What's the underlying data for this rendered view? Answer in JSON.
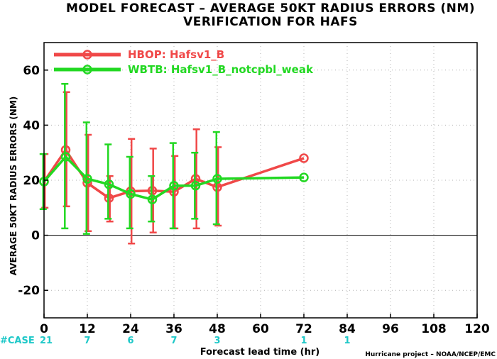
{
  "chart_data": {
    "type": "line",
    "title": "MODEL FORECAST – AVERAGE 50KT RADIUS ERRORS (NM)",
    "subtitle": "VERIFICATION FOR HAFS",
    "xlabel": "Forecast lead time (hr)",
    "ylabel": "AVERAGE 50KT RADIUS ERRORS (NM)",
    "xlim": [
      0,
      120
    ],
    "ylim": [
      -30,
      70
    ],
    "xticks": [
      0,
      12,
      24,
      36,
      48,
      60,
      72,
      84,
      96,
      108,
      120
    ],
    "yticks": [
      -20,
      0,
      20,
      40,
      60
    ],
    "grid": true,
    "legend_position": "top-left",
    "case_label": "#CASE",
    "cases": [
      {
        "x": 0,
        "label": "21"
      },
      {
        "x": 12,
        "label": "7"
      },
      {
        "x": 24,
        "label": "6"
      },
      {
        "x": 36,
        "label": "7"
      },
      {
        "x": 48,
        "label": "3"
      },
      {
        "x": 72,
        "label": "1"
      },
      {
        "x": 84,
        "label": "1"
      }
    ],
    "credit": "Hurricane project – NOAA/NCEP/EMC",
    "series": [
      {
        "name": "HBOP: Hafsv1_B",
        "color": "#f04848",
        "x": [
          0,
          6,
          12,
          18,
          24,
          30,
          36,
          42,
          48,
          72
        ],
        "y": [
          19.5,
          31,
          19,
          13.5,
          16,
          16.2,
          15.8,
          20.5,
          17.5,
          28
        ],
        "low": [
          10,
          10.5,
          1.5,
          5,
          -3,
          1,
          2.5,
          2.5,
          3.5,
          null
        ],
        "high": [
          29.5,
          52,
          36.5,
          21.5,
          35,
          31.5,
          28.8,
          38.5,
          32,
          null
        ]
      },
      {
        "name": "WBTB: Hafsv1_B_notcpbl_weak",
        "color": "#22d822",
        "x": [
          0,
          6,
          12,
          18,
          24,
          30,
          36,
          42,
          48,
          72
        ],
        "y": [
          19.5,
          28.5,
          20.5,
          18.5,
          15,
          13,
          18,
          18,
          20.5,
          21
        ],
        "low": [
          9.5,
          2.5,
          0.5,
          6,
          2.5,
          5,
          2.5,
          6,
          4,
          null
        ],
        "high": [
          29.5,
          55,
          41,
          33,
          28.5,
          21.5,
          33.5,
          30,
          37.5,
          null
        ]
      }
    ]
  }
}
